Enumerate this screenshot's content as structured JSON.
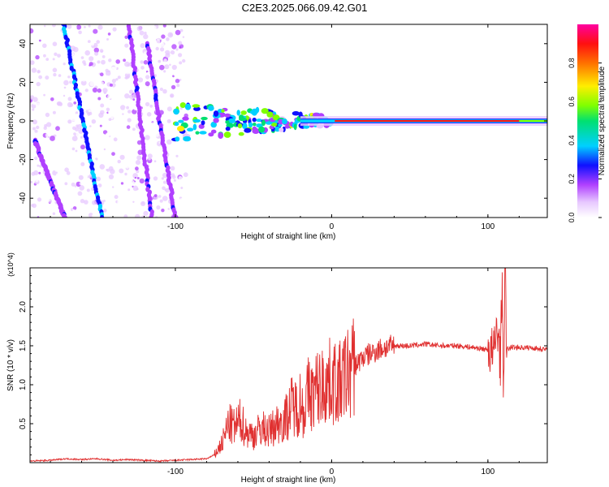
{
  "title": "C2E3.2025.066.09.42.G01",
  "chart_data": [
    {
      "type": "heatmap",
      "title": "C2E3.2025.066.09.42.G01",
      "xlabel": "Height of straight line (km)",
      "ylabel": "Frequency (Hz)",
      "xlim": [
        -193,
        138
      ],
      "ylim": [
        -50,
        50
      ],
      "x_ticks": [
        -100,
        0,
        100
      ],
      "x_tick_labels": [
        "-100",
        "0",
        "100"
      ],
      "y_ticks": [
        -40,
        -20,
        0,
        20,
        40
      ],
      "y_tick_labels": [
        "-40",
        "-20",
        "0",
        "20",
        "40"
      ],
      "colorbar": {
        "label": "Normalized spectral amplitude",
        "range": [
          0.0,
          1.0
        ],
        "ticks": [
          0.0,
          0.2,
          0.4,
          0.6,
          0.8
        ],
        "tick_labels": [
          "0.0",
          "0.2",
          "0.4",
          "0.6",
          "0.8"
        ]
      },
      "features": [
        {
          "name": "carrier-line",
          "frequency_hz": 0,
          "x_start_km": 2,
          "x_end_km": 138,
          "amplitude": 0.95
        },
        {
          "name": "noisy-carrier",
          "frequency_hz": 0,
          "x_start_km": -100,
          "x_end_km": 0,
          "spread_hz": 10
        },
        {
          "name": "diagonal-streak-1",
          "points_km_hz": [
            [
              -172,
              52
            ],
            [
              -147,
              -50
            ]
          ]
        },
        {
          "name": "diagonal-streak-2",
          "points_km_hz": [
            [
              -190,
              -10
            ],
            [
              -170,
              -52
            ]
          ]
        },
        {
          "name": "diagonal-streak-3",
          "points_km_hz": [
            [
              -130,
              52
            ],
            [
              -115,
              -50
            ]
          ]
        },
        {
          "name": "diagonal-streak-4",
          "points_km_hz": [
            [
              -118,
              40
            ],
            [
              -100,
              -50
            ]
          ]
        }
      ]
    },
    {
      "type": "line",
      "xlabel": "Height of straight line (km)",
      "ylabel": "SNR (10 * v/v)",
      "y_multiplier": "(x10^4)",
      "xlim": [
        -193,
        138
      ],
      "ylim": [
        0,
        2.5
      ],
      "x_ticks": [
        -100,
        0,
        100
      ],
      "x_tick_labels": [
        "-100",
        "0",
        "100"
      ],
      "y_ticks": [
        0.5,
        1.0,
        1.5,
        2.0
      ],
      "y_tick_labels": [
        "0.5",
        "1.0",
        "1.5",
        "2.0"
      ],
      "series": [
        {
          "name": "SNR",
          "color": "#e03030",
          "x": [
            -193,
            -180,
            -170,
            -160,
            -150,
            -140,
            -130,
            -120,
            -110,
            -100,
            -90,
            -80,
            -75,
            -70,
            -66,
            -62,
            -58,
            -55,
            -50,
            -45,
            -40,
            -35,
            -30,
            -25,
            -22,
            -20,
            -18,
            -15,
            -12,
            -10,
            -8,
            -5,
            0,
            5,
            10,
            15,
            20,
            25,
            30,
            35,
            40,
            50,
            60,
            70,
            80,
            90,
            100,
            104,
            106,
            108,
            109,
            110,
            111,
            112,
            115,
            120,
            130,
            138
          ],
          "values": [
            0.02,
            0.03,
            0.05,
            0.04,
            0.05,
            0.03,
            0.04,
            0.03,
            0.02,
            0.03,
            0.04,
            0.05,
            0.1,
            0.25,
            0.5,
            0.45,
            0.55,
            0.4,
            0.35,
            0.45,
            0.4,
            0.5,
            0.55,
            0.75,
            0.7,
            0.8,
            0.65,
            0.9,
            0.85,
            0.95,
            0.95,
            1.0,
            1.05,
            1.0,
            1.15,
            1.25,
            1.35,
            1.4,
            1.45,
            1.48,
            1.5,
            1.5,
            1.52,
            1.5,
            1.5,
            1.48,
            1.45,
            1.4,
            1.8,
            1.3,
            2.3,
            1.0,
            2.5,
            1.45,
            1.48,
            1.48,
            1.47,
            1.45
          ]
        }
      ]
    }
  ]
}
